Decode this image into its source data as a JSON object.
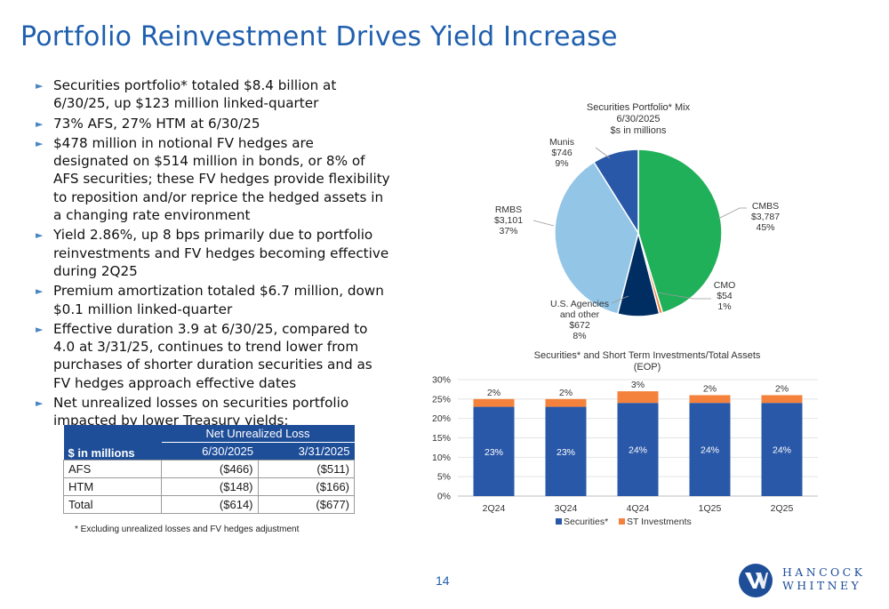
{
  "title": "Portfolio Reinvestment Drives Yield Increase",
  "bullets": [
    "Securities portfolio* totaled $8.4 billion at 6/30/25, up $123 million linked-quarter",
    "73% AFS, 27% HTM at 6/30/25",
    "$478 million in notional FV hedges are designated on $514 million in bonds, or 8% of AFS securities; these FV hedges provide flexibility to  reposition and/or reprice the hedged assets in a changing rate environment",
    "Yield 2.86%, up 8 bps primarily due to portfolio reinvestments and FV hedges becoming effective during 2Q25",
    "Premium amortization totaled $6.7 million, down $0.1 million linked-quarter",
    "Effective duration 3.9 at 6/30/25, compared to 4.0 at 3/31/25, continues to trend lower from purchases of shorter duration securities and as FV hedges approach effective dates",
    "Net unrealized losses on securities portfolio impacted by lower Treasury yields:"
  ],
  "loss_table": {
    "row_header": "$ in millions",
    "group_header": "Net Unrealized Loss",
    "columns": [
      "6/30/2025",
      "3/31/2025"
    ],
    "rows": [
      {
        "label": "AFS",
        "values": [
          "($466)",
          "($511)"
        ]
      },
      {
        "label": "HTM",
        "values": [
          "($148)",
          "($166)"
        ]
      },
      {
        "label": "Total",
        "values": [
          "($614)",
          "($677)"
        ]
      }
    ]
  },
  "footnote": "* Excluding unrealized losses and FV hedges adjustment",
  "page_number": "14",
  "logo": {
    "line1": "HANCOCK",
    "line2": "WHITNEY",
    "icon": "hancock-whitney-logo-icon"
  },
  "colors": {
    "title": "#1f5fae",
    "navy": "#1f4e99",
    "green": "#21b05a",
    "orange": "#f4823c",
    "light_blue": "#93c5e6",
    "dark_navy": "#002e62",
    "blue": "#2a58a8"
  },
  "chart_data": [
    {
      "type": "pie",
      "title": [
        "Securities Portfolio* Mix",
        "6/30/2025",
        "$s in millions"
      ],
      "slices": [
        {
          "name": "CMBS",
          "value": 3787,
          "label": "$3,787",
          "pct": "45%",
          "color": "#21b05a"
        },
        {
          "name": "CMO",
          "value": 54,
          "label": "$54",
          "pct": "1%",
          "color": "#f4823c"
        },
        {
          "name": "U.S. Agencies and other",
          "value": 672,
          "label": "$672",
          "pct": "8%",
          "color": "#002e62"
        },
        {
          "name": "RMBS",
          "value": 3101,
          "label": "$3,101",
          "pct": "37%",
          "color": "#93c5e6"
        },
        {
          "name": "Munis",
          "value": 746,
          "label": "$746",
          "pct": "9%",
          "color": "#2a58a8"
        }
      ]
    },
    {
      "type": "bar",
      "stacked": true,
      "title": [
        "Securities* and Short Term Investments/Total Assets",
        "(EOP)"
      ],
      "categories": [
        "2Q24",
        "3Q24",
        "4Q24",
        "1Q25",
        "2Q25"
      ],
      "series": [
        {
          "name": "Securities*",
          "values": [
            23,
            23,
            24,
            24,
            24
          ],
          "labels": [
            "23%",
            "23%",
            "24%",
            "24%",
            "24%"
          ],
          "color": "#2a58a8"
        },
        {
          "name": "ST Investments",
          "values": [
            2,
            2,
            3,
            2,
            2
          ],
          "labels": [
            "2%",
            "2%",
            "3%",
            "2%",
            "2%"
          ],
          "color": "#f4823c"
        }
      ],
      "ylim": [
        0,
        30
      ],
      "yticks": [
        "0%",
        "5%",
        "10%",
        "15%",
        "20%",
        "25%",
        "30%"
      ],
      "legend": "bottom"
    }
  ]
}
